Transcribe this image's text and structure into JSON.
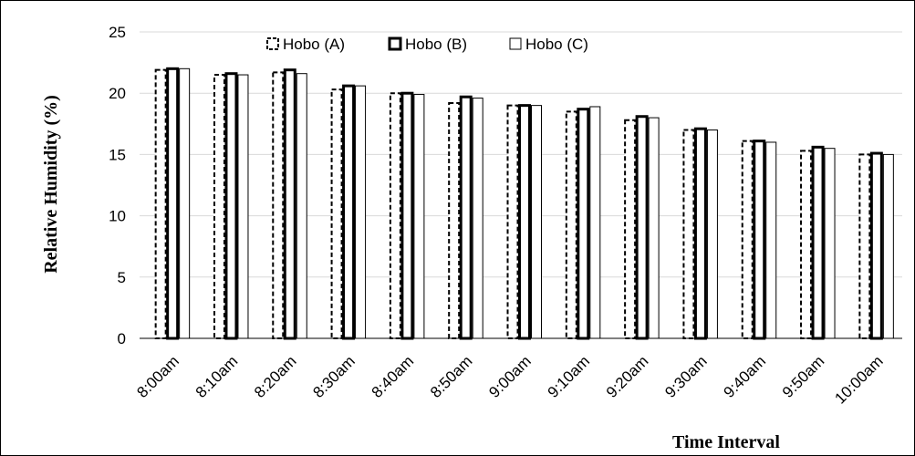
{
  "chart_data": {
    "type": "bar",
    "title": "",
    "xlabel": "Time Interval",
    "ylabel": "Relative Humidity (%)",
    "ylim": [
      0,
      25
    ],
    "yticks": [
      0,
      5,
      10,
      15,
      20,
      25
    ],
    "grid": true,
    "legend_position": "top",
    "categories": [
      "8:00am",
      "8:10am",
      "8:20am",
      "8:30am",
      "8:40am",
      "8:50am",
      "9:00am",
      "9:10am",
      "9:20am",
      "9:30am",
      "9:40am",
      "9:50am",
      "10:00am"
    ],
    "series": [
      {
        "name": "Hobo (A)",
        "style": "dashed",
        "color": "#000000",
        "fill": "#ffffff",
        "values": [
          21.9,
          21.5,
          21.7,
          20.3,
          20.0,
          19.2,
          19.0,
          18.5,
          17.8,
          17.0,
          16.1,
          15.3,
          15.0
        ]
      },
      {
        "name": "Hobo (B)",
        "style": "solid-black",
        "color": "#000000",
        "fill": "#000000",
        "values": [
          22.0,
          21.6,
          21.9,
          20.6,
          20.0,
          19.7,
          19.0,
          18.7,
          18.1,
          17.1,
          16.1,
          15.6,
          15.1
        ]
      },
      {
        "name": "Hobo (C)",
        "style": "outline",
        "color": "#000000",
        "fill": "#ffffff",
        "values": [
          22.0,
          21.5,
          21.6,
          20.6,
          19.9,
          19.6,
          19.0,
          18.9,
          18.0,
          17.0,
          16.0,
          15.5,
          15.0
        ]
      }
    ]
  }
}
